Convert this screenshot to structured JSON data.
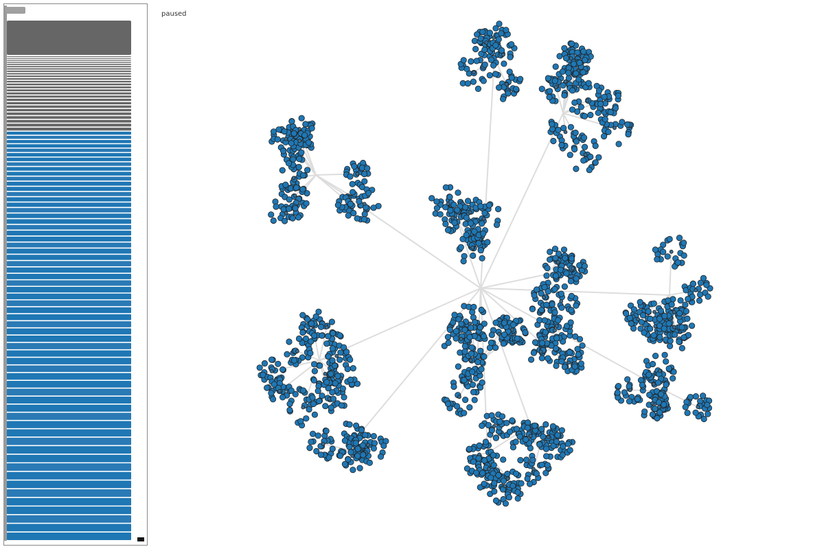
{
  "status": "paused"
}
